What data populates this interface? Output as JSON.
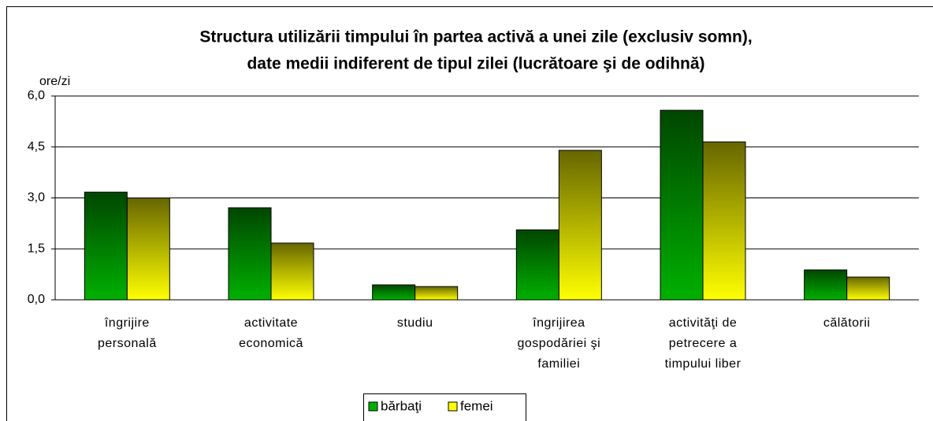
{
  "chart_data": {
    "type": "bar",
    "title": [
      "Structura utilizării timpului în partea activă a unei zile (exclusiv somn),",
      "date medii indiferent de tipul zilei (lucrătoare şi de odihnă)"
    ],
    "y_axis_label": "ore/zi",
    "categories": [
      "îngrijire\npersonală",
      "activitate\neconomică",
      "studiu",
      "îngrijirea\ngospodăriei şi\nfamiliei",
      "activităţi de\npetrecere a\ntimpului liber",
      "călătorii"
    ],
    "series": [
      {
        "name": "bărbaţi",
        "color": "#00b000",
        "values": [
          3.17,
          2.71,
          0.44,
          2.06,
          5.58,
          0.88
        ]
      },
      {
        "name": "femei",
        "color": "#ffff00",
        "values": [
          3.0,
          1.67,
          0.39,
          4.4,
          4.65,
          0.67
        ]
      }
    ],
    "ylim": [
      0,
      6
    ],
    "yticks": [
      {
        "value": 0,
        "label": "0,0"
      },
      {
        "value": 1.5,
        "label": "1,5"
      },
      {
        "value": 3,
        "label": "3,0"
      },
      {
        "value": 4.5,
        "label": "4,5"
      },
      {
        "value": 6,
        "label": "6,0"
      }
    ],
    "grid": true,
    "legend": "bottom"
  }
}
